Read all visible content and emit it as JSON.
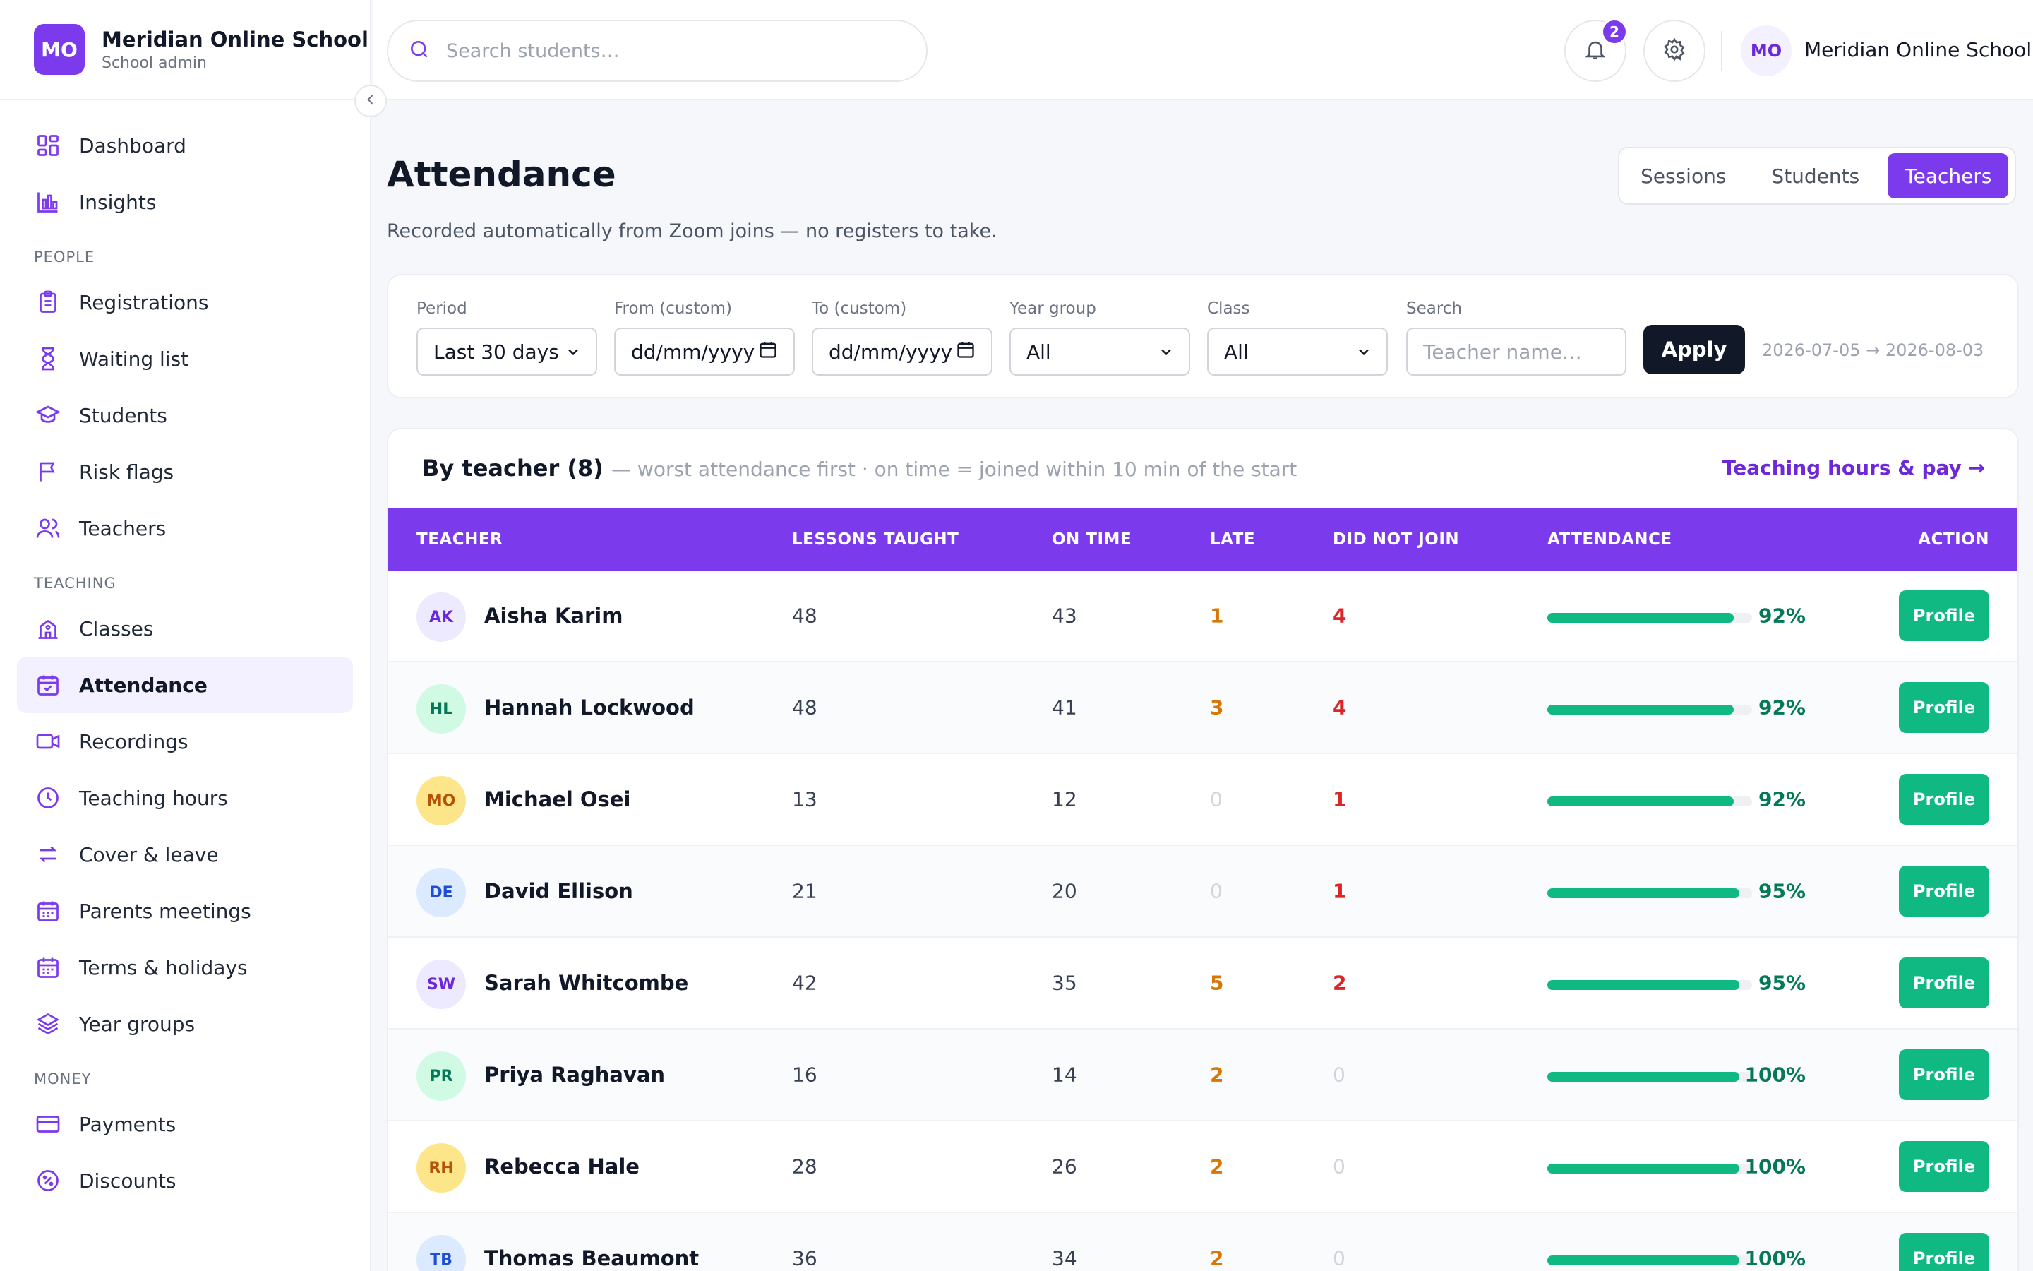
{
  "brand": {
    "initials": "MO",
    "name": "Meridian Online School",
    "role": "School admin"
  },
  "sidebar": {
    "top": [
      {
        "label": "Dashboard",
        "icon": "dashboard-icon"
      },
      {
        "label": "Insights",
        "icon": "bar-chart-icon"
      }
    ],
    "people_title": "PEOPLE",
    "people": [
      {
        "label": "Registrations",
        "icon": "clipboard-icon"
      },
      {
        "label": "Waiting list",
        "icon": "hourglass-icon"
      },
      {
        "label": "Students",
        "icon": "graduation-cap-icon"
      },
      {
        "label": "Risk flags",
        "icon": "flag-icon"
      },
      {
        "label": "Teachers",
        "icon": "users-icon"
      }
    ],
    "teaching_title": "TEACHING",
    "teaching": [
      {
        "label": "Classes",
        "icon": "school-building-icon"
      },
      {
        "label": "Attendance",
        "icon": "calendar-check-icon",
        "active": true
      },
      {
        "label": "Recordings",
        "icon": "video-icon"
      },
      {
        "label": "Teaching hours",
        "icon": "clock-icon"
      },
      {
        "label": "Cover & leave",
        "icon": "swap-icon"
      },
      {
        "label": "Parents meetings",
        "icon": "calendar-icon"
      },
      {
        "label": "Terms & holidays",
        "icon": "calendar-icon"
      },
      {
        "label": "Year groups",
        "icon": "layers-icon"
      }
    ],
    "money_title": "MONEY",
    "money": [
      {
        "label": "Payments",
        "icon": "credit-card-icon"
      },
      {
        "label": "Discounts",
        "icon": "discount-icon"
      }
    ]
  },
  "topbar": {
    "search_placeholder": "Search students…",
    "notifications_count": "2",
    "user_initials": "MO",
    "user_name": "Meridian Online School"
  },
  "page": {
    "title": "Attendance",
    "subtitle": "Recorded automatically from Zoom joins — no registers to take.",
    "tabs": [
      {
        "label": "Sessions",
        "active": false
      },
      {
        "label": "Students",
        "active": false
      },
      {
        "label": "Teachers",
        "active": true
      }
    ]
  },
  "filters": {
    "period_label": "Period",
    "period_value": "Last 30 days",
    "from_label": "From (custom)",
    "from_value": "dd/mm/yyyy",
    "to_label": "To (custom)",
    "to_value": "dd/mm/yyyy",
    "year_label": "Year group",
    "year_value": "All",
    "class_label": "Class",
    "class_value": "All",
    "search_label": "Search",
    "search_placeholder": "Teacher name…",
    "apply_label": "Apply",
    "range_text": "2026-07-05 → 2026-08-03"
  },
  "table": {
    "title": "By teacher (8)",
    "subtitle": "— worst attendance first · on time = joined within 10 min of the start",
    "link": "Teaching hours & pay →",
    "headers": {
      "teacher": "TEACHER",
      "lessons": "LESSONS TAUGHT",
      "on_time": "ON TIME",
      "late": "LATE",
      "missed": "DID NOT JOIN",
      "attendance": "ATTENDANCE",
      "action": "ACTION"
    },
    "action_label": "Profile",
    "rows": [
      {
        "initials": "AK",
        "name": "Aisha Karim",
        "lessons": "48",
        "on_time": "43",
        "late": "1",
        "missed": "4",
        "attendance_pct": 92,
        "attendance": "92%",
        "avatar_bg": "#ede9fe",
        "avatar_fg": "#6d28d9"
      },
      {
        "initials": "HL",
        "name": "Hannah Lockwood",
        "lessons": "48",
        "on_time": "41",
        "late": "3",
        "missed": "4",
        "attendance_pct": 92,
        "attendance": "92%",
        "avatar_bg": "#d1fae5",
        "avatar_fg": "#047857"
      },
      {
        "initials": "MO",
        "name": "Michael Osei",
        "lessons": "13",
        "on_time": "12",
        "late": "0",
        "missed": "1",
        "attendance_pct": 92,
        "attendance": "92%",
        "avatar_bg": "#fde68a",
        "avatar_fg": "#b45309"
      },
      {
        "initials": "DE",
        "name": "David Ellison",
        "lessons": "21",
        "on_time": "20",
        "late": "0",
        "missed": "1",
        "attendance_pct": 95,
        "attendance": "95%",
        "avatar_bg": "#dbeafe",
        "avatar_fg": "#1d4ed8"
      },
      {
        "initials": "SW",
        "name": "Sarah Whitcombe",
        "lessons": "42",
        "on_time": "35",
        "late": "5",
        "missed": "2",
        "attendance_pct": 95,
        "attendance": "95%",
        "avatar_bg": "#ede9fe",
        "avatar_fg": "#6d28d9"
      },
      {
        "initials": "PR",
        "name": "Priya Raghavan",
        "lessons": "16",
        "on_time": "14",
        "late": "2",
        "missed": "0",
        "attendance_pct": 100,
        "attendance": "100%",
        "avatar_bg": "#d1fae5",
        "avatar_fg": "#047857"
      },
      {
        "initials": "RH",
        "name": "Rebecca Hale",
        "lessons": "28",
        "on_time": "26",
        "late": "2",
        "missed": "0",
        "attendance_pct": 100,
        "attendance": "100%",
        "avatar_bg": "#fde68a",
        "avatar_fg": "#b45309"
      },
      {
        "initials": "TB",
        "name": "Thomas Beaumont",
        "lessons": "36",
        "on_time": "34",
        "late": "2",
        "missed": "0",
        "attendance_pct": 100,
        "attendance": "100%",
        "avatar_bg": "#dbeafe",
        "avatar_fg": "#1d4ed8"
      }
    ]
  },
  "colors": {
    "accent": "#7c3aed",
    "success": "#10b981",
    "late": "#d97706",
    "missed": "#dc2626"
  }
}
